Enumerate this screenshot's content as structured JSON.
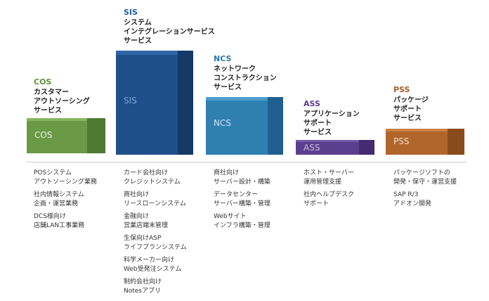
{
  "segments": [
    {
      "id": "cos",
      "code": "COS",
      "heading": [
        "カスタマー",
        "アウトソーシング",
        "サービス"
      ],
      "block_label": "COS",
      "colors": {
        "front": "#6a9a45",
        "side": "#4e7a31",
        "top": "#86b55c",
        "code": "#5f8f38",
        "label": "#e8f2df"
      },
      "items": [
        [
          "POSシステム",
          "アウトソーシング業務"
        ],
        [
          "社内情報システム",
          "企画・運営業務"
        ],
        [
          "DCS様向け",
          "店舗LAN工事業務"
        ]
      ]
    },
    {
      "id": "sis",
      "code": "SIS",
      "heading": [
        "システム",
        "インテグレーションサービス",
        ""
      ],
      "block_label": "SIS",
      "colors": {
        "front": "#1f4f8a",
        "side": "#153a68",
        "top": "#2d65a7",
        "code": "#1f5b98",
        "label": "#7fa6d6"
      },
      "items": [
        [
          "カード会社向け",
          "クレジットシステム"
        ],
        [
          "商社向け",
          "リースローンシステム"
        ],
        [
          "金融向け",
          "営業店端末管理"
        ],
        [
          "生保向けASP",
          "ライフプランシステム"
        ],
        [
          "科学メーカー向け",
          "Web受発注システム"
        ],
        [
          "制約会社向け",
          "Notesアプリ"
        ]
      ]
    },
    {
      "id": "ncs",
      "code": "NCS",
      "heading": [
        "ネットワーク",
        "コンストラクション",
        "サービス"
      ],
      "block_label": "NCS",
      "colors": {
        "front": "#2f7fb0",
        "side": "#1f6090",
        "top": "#4c9ccc",
        "code": "#2b77aa",
        "label": "#cfe6f4"
      },
      "items": [
        [
          "商社向け",
          "サーバー設計・構築"
        ],
        [
          "データセンター",
          "サーバー構築・管理"
        ],
        [
          "Webサイト",
          "インフラ構築・管理"
        ]
      ]
    },
    {
      "id": "ass",
      "code": "ASS",
      "heading": [
        "アプリケーション",
        "サポート",
        "サービス"
      ],
      "block_label": "ASS",
      "colors": {
        "front": "#5b3f8f",
        "side": "#432c6f",
        "top": "#7459a8",
        "code": "#5a3a8e",
        "label": "#c9bde0"
      },
      "items": [
        [
          "ホスト・サーバー",
          "運用管理支援"
        ],
        [
          "社内ヘルプデスク",
          "サポート"
        ]
      ]
    },
    {
      "id": "pss",
      "code": "PSS",
      "heading": [
        "パッケージ",
        "サポート",
        "サービス"
      ],
      "block_label": "PSS",
      "colors": {
        "front": "#b0652b",
        "side": "#8a4b1c",
        "top": "#c98144",
        "code": "#a85f26",
        "label": "#f3dfcd"
      },
      "items": [
        [
          "パッケージソフトの",
          "開発・保守・運営支援"
        ],
        [
          "SAP R/3",
          "アドオン開発"
        ]
      ]
    }
  ]
}
